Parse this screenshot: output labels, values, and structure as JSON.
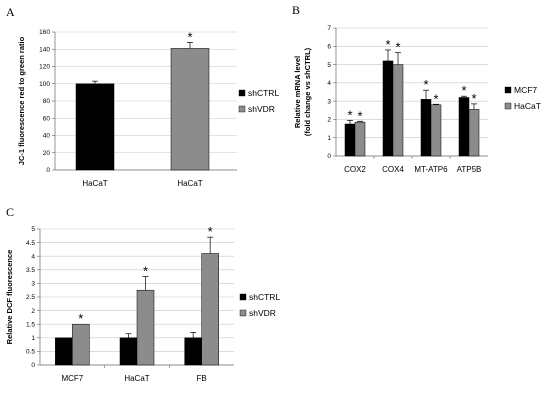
{
  "panels": [
    "A",
    "B",
    "C"
  ],
  "chart_data": [
    {
      "type": "bar",
      "panel": "A",
      "categories": [
        "HaCaT",
        "HaCaT"
      ],
      "series": [
        {
          "name": "shCTRL",
          "values": [
            100,
            null
          ],
          "err": [
            3,
            null
          ],
          "color": "#000000"
        },
        {
          "name": "shVDR",
          "values": [
            null,
            141
          ],
          "err": [
            null,
            7
          ],
          "color": "#8c8c8c"
        }
      ],
      "ylabel": "JC-1 fluorescence red to green ratio",
      "ylim": [
        0,
        160
      ],
      "yticks": [
        "0",
        "20",
        "40",
        "60",
        "80",
        "100",
        "120",
        "140",
        "160"
      ],
      "annotations": [
        {
          "category": 1,
          "series": 1,
          "text": "*"
        }
      ],
      "grid": true,
      "legend": "right"
    },
    {
      "type": "bar",
      "panel": "B",
      "categories": [
        "COX2",
        "COX4",
        "MT-ATP6",
        "ATP5B"
      ],
      "series": [
        {
          "name": "MCF7",
          "values": [
            1.75,
            5.2,
            3.1,
            3.2
          ],
          "err": [
            0.2,
            0.6,
            0.5,
            0.07
          ],
          "color": "#000000"
        },
        {
          "name": "HaCaT",
          "values": [
            1.85,
            5.0,
            2.8,
            2.55
          ],
          "err": [
            0.05,
            0.65,
            0.03,
            0.3
          ],
          "color": "#8c8c8c"
        }
      ],
      "ylabel": "Relative mRNA level (fold change vs shCTRL)",
      "ylim": [
        0,
        7
      ],
      "yticks": [
        "0",
        "1",
        "2",
        "3",
        "4",
        "5",
        "6",
        "7"
      ],
      "annotations": [
        {
          "category": 0,
          "series": 0,
          "text": "*"
        },
        {
          "category": 0,
          "series": 1,
          "text": "*"
        },
        {
          "category": 1,
          "series": 0,
          "text": "*"
        },
        {
          "category": 1,
          "series": 1,
          "text": "*"
        },
        {
          "category": 2,
          "series": 0,
          "text": "*"
        },
        {
          "category": 2,
          "series": 1,
          "text": "*"
        },
        {
          "category": 3,
          "series": 0,
          "text": "*"
        },
        {
          "category": 3,
          "series": 1,
          "text": "*"
        }
      ],
      "grid": true,
      "legend": "right"
    },
    {
      "type": "bar",
      "panel": "C",
      "categories": [
        "MCF7",
        "HaCaT",
        "FB"
      ],
      "series": [
        {
          "name": "shCTRL",
          "values": [
            1,
            1,
            1
          ],
          "err": [
            0,
            0.15,
            0.2
          ],
          "color": "#000000"
        },
        {
          "name": "shVDR",
          "values": [
            1.5,
            2.75,
            4.1
          ],
          "err": [
            0,
            0.5,
            0.6
          ],
          "color": "#8c8c8c"
        }
      ],
      "ylabel": "Relative DCF fluorescence",
      "ylim": [
        0,
        5
      ],
      "yticks": [
        "0",
        "0.5",
        "1",
        "1.5",
        "2",
        "2.5",
        "3",
        "3.5",
        "4",
        "4.5",
        "5"
      ],
      "annotations": [
        {
          "category": 0,
          "series": 1,
          "text": "*"
        },
        {
          "category": 1,
          "series": 1,
          "text": "*"
        },
        {
          "category": 2,
          "series": 1,
          "text": "*"
        }
      ],
      "grid": true,
      "legend": "right"
    }
  ]
}
